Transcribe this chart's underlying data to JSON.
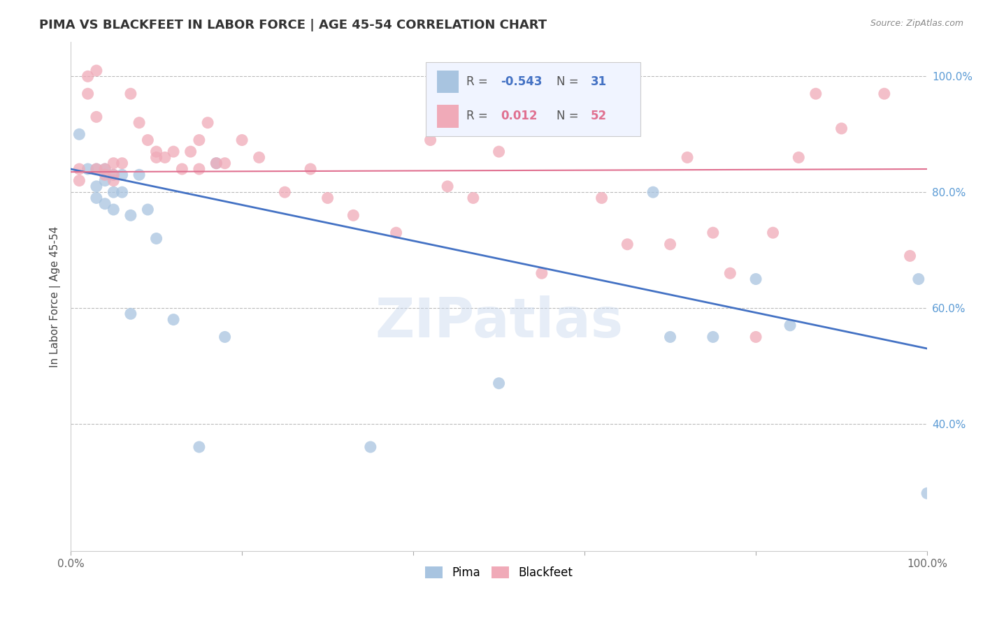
{
  "title": "PIMA VS BLACKFEET IN LABOR FORCE | AGE 45-54 CORRELATION CHART",
  "source": "Source: ZipAtlas.com",
  "ylabel": "In Labor Force | Age 45-54",
  "xlim": [
    0.0,
    1.0
  ],
  "ylim": [
    0.18,
    1.06
  ],
  "yticks": [
    0.4,
    0.6,
    0.8,
    1.0
  ],
  "ytick_labels": [
    "40.0%",
    "60.0%",
    "80.0%",
    "100.0%"
  ],
  "xticks": [
    0.0,
    0.2,
    0.4,
    0.6,
    0.8,
    1.0
  ],
  "xtick_labels": [
    "0.0%",
    "",
    "",
    "",
    "",
    "100.0%"
  ],
  "pima_R": -0.543,
  "pima_N": 31,
  "blackfeet_R": 0.012,
  "blackfeet_N": 52,
  "pima_color": "#a8c4e0",
  "blackfeet_color": "#f0aab8",
  "pima_line_color": "#4472c4",
  "blackfeet_line_color": "#e07090",
  "watermark": "ZIPatlas",
  "pima_line_x0": 0.0,
  "pima_line_y0": 0.84,
  "pima_line_x1": 1.0,
  "pima_line_y1": 0.53,
  "blackfeet_line_x0": 0.0,
  "blackfeet_line_y0": 0.835,
  "blackfeet_line_x1": 1.0,
  "blackfeet_line_y1": 0.84,
  "pima_x": [
    0.01,
    0.02,
    0.03,
    0.03,
    0.03,
    0.04,
    0.04,
    0.04,
    0.05,
    0.05,
    0.05,
    0.06,
    0.06,
    0.07,
    0.07,
    0.08,
    0.09,
    0.1,
    0.12,
    0.15,
    0.17,
    0.18,
    0.35,
    0.5,
    0.68,
    0.7,
    0.75,
    0.8,
    0.84,
    0.99,
    1.0
  ],
  "pima_y": [
    0.9,
    0.84,
    0.84,
    0.81,
    0.79,
    0.84,
    0.82,
    0.78,
    0.83,
    0.8,
    0.77,
    0.83,
    0.8,
    0.76,
    0.59,
    0.83,
    0.77,
    0.72,
    0.58,
    0.36,
    0.85,
    0.55,
    0.36,
    0.47,
    0.8,
    0.55,
    0.55,
    0.65,
    0.57,
    0.65,
    0.28
  ],
  "blackfeet_x": [
    0.01,
    0.01,
    0.02,
    0.02,
    0.03,
    0.03,
    0.03,
    0.04,
    0.04,
    0.05,
    0.05,
    0.05,
    0.06,
    0.07,
    0.08,
    0.09,
    0.1,
    0.1,
    0.11,
    0.12,
    0.13,
    0.14,
    0.15,
    0.15,
    0.16,
    0.17,
    0.18,
    0.2,
    0.22,
    0.25,
    0.28,
    0.3,
    0.33,
    0.38,
    0.42,
    0.44,
    0.47,
    0.5,
    0.55,
    0.62,
    0.65,
    0.7,
    0.72,
    0.75,
    0.77,
    0.8,
    0.82,
    0.85,
    0.87,
    0.9,
    0.95,
    0.98
  ],
  "blackfeet_y": [
    0.84,
    0.82,
    1.0,
    0.97,
    1.01,
    0.93,
    0.84,
    0.84,
    0.83,
    0.85,
    0.83,
    0.82,
    0.85,
    0.97,
    0.92,
    0.89,
    0.87,
    0.86,
    0.86,
    0.87,
    0.84,
    0.87,
    0.89,
    0.84,
    0.92,
    0.85,
    0.85,
    0.89,
    0.86,
    0.8,
    0.84,
    0.79,
    0.76,
    0.73,
    0.89,
    0.81,
    0.79,
    0.87,
    0.66,
    0.79,
    0.71,
    0.71,
    0.86,
    0.73,
    0.66,
    0.55,
    0.73,
    0.86,
    0.97,
    0.91,
    0.97,
    0.69
  ]
}
